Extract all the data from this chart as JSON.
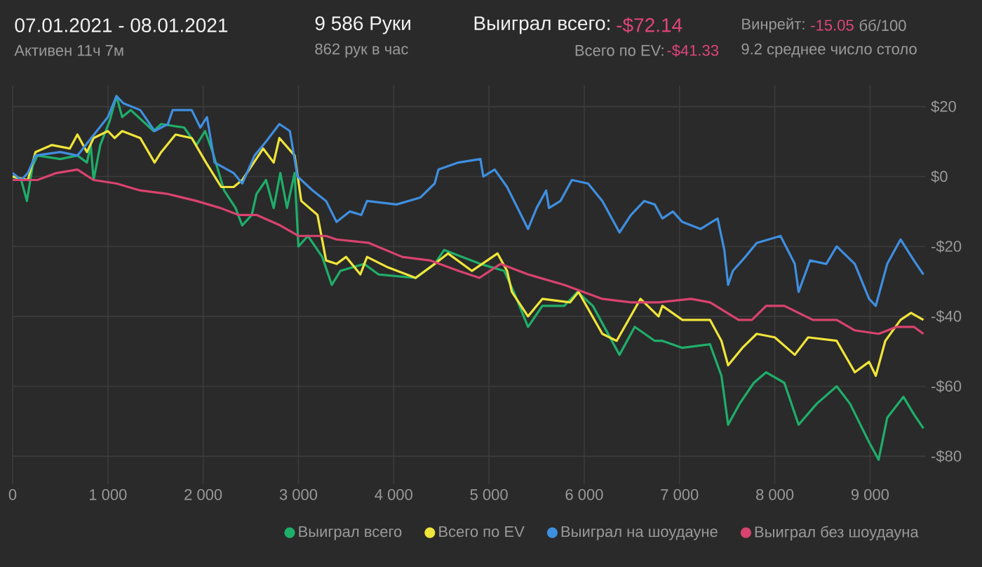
{
  "chart_data": {
    "type": "line",
    "title": "07.01.2021 - 08.01.2021",
    "subtitle": "Активен 11ч 7м",
    "annotations": [
      "9 586 Руки",
      "862 рук в час",
      "Выиграл всего:",
      "-$72.14",
      "Всего по EV:",
      "-$41.33",
      "Винрейт:",
      "-15.05",
      "бб/100",
      "9.2 среднее число столо"
    ],
    "xlim": [
      0,
      9586
    ],
    "ylim": [
      -88,
      26
    ],
    "xticks": [
      {
        "value": 0,
        "label": "0"
      },
      {
        "value": 1000,
        "label": "1 000"
      },
      {
        "value": 2000,
        "label": "2 000"
      },
      {
        "value": 3000,
        "label": "3 000"
      },
      {
        "value": 4000,
        "label": "4 000"
      },
      {
        "value": 5000,
        "label": "5 000"
      },
      {
        "value": 6000,
        "label": "6 000"
      },
      {
        "value": 7000,
        "label": "7 000"
      },
      {
        "value": 8000,
        "label": "8 000"
      },
      {
        "value": 9000,
        "label": "9 000"
      }
    ],
    "yticks": [
      {
        "value": 20,
        "label": "$20"
      },
      {
        "value": 0,
        "label": "$0"
      },
      {
        "value": -20,
        "label": "-$20"
      },
      {
        "value": -40,
        "label": "-$40"
      },
      {
        "value": -60,
        "label": "-$60"
      },
      {
        "value": -80,
        "label": "-$80"
      }
    ],
    "grid": true,
    "legend": "bottom",
    "series": [
      {
        "name": "Выиграл всего",
        "color": "#1fae6a",
        "x": [
          0,
          90,
          150,
          210,
          260,
          500,
          680,
          780,
          820,
          850,
          920,
          1020,
          1090,
          1150,
          1240,
          1480,
          1560,
          1800,
          1930,
          2020,
          2100,
          2220,
          2340,
          2410,
          2510,
          2560,
          2660,
          2740,
          2810,
          2880,
          2960,
          3000,
          3100,
          3250,
          3350,
          3440,
          3690,
          3840,
          4230,
          4430,
          4530,
          4720,
          4910,
          5160,
          5260,
          5410,
          5560,
          5790,
          5930,
          6090,
          6370,
          6530,
          6740,
          6820,
          7030,
          7320,
          7440,
          7510,
          7630,
          7780,
          7910,
          8100,
          8250,
          8440,
          8650,
          8790,
          8990,
          9090,
          9180,
          9350,
          9460,
          9560
        ],
        "values": [
          0,
          -1,
          -7,
          3,
          6,
          5,
          6,
          4,
          9,
          -1,
          9,
          16,
          23,
          17,
          19,
          13,
          15,
          14,
          9,
          13,
          7,
          -4,
          -9,
          -14,
          -11,
          -5,
          -1,
          -9,
          1,
          -9,
          1,
          -20,
          -17,
          -23,
          -31,
          -27,
          -25,
          -28,
          -29,
          -25,
          -21,
          -23,
          -25,
          -27,
          -33,
          -43,
          -37,
          -37,
          -33,
          -37,
          -51,
          -43,
          -47,
          -47,
          -49,
          -48,
          -57,
          -71,
          -65,
          -59,
          -56,
          -59,
          -71,
          -65,
          -60,
          -65,
          -76,
          -81,
          -69,
          -63,
          -68,
          -72
        ]
      },
      {
        "name": "Всего по EV",
        "color": "#f0e53a",
        "x": [
          0,
          160,
          240,
          410,
          600,
          680,
          780,
          850,
          1000,
          1070,
          1150,
          1340,
          1490,
          1560,
          1710,
          1880,
          2030,
          2190,
          2320,
          2410,
          2630,
          2740,
          2800,
          2960,
          3030,
          3200,
          3290,
          3400,
          3500,
          3650,
          3720,
          3940,
          4230,
          4430,
          4570,
          4820,
          5090,
          5190,
          5240,
          5410,
          5560,
          5850,
          5940,
          6190,
          6340,
          6590,
          6780,
          6820,
          7030,
          7320,
          7440,
          7510,
          7660,
          7810,
          8000,
          8210,
          8350,
          8650,
          8840,
          8990,
          9060,
          9160,
          9320,
          9430,
          9560
        ],
        "values": [
          0,
          -1,
          7,
          9,
          8,
          12,
          7,
          11,
          13,
          11,
          13,
          11,
          4,
          7,
          12,
          11,
          4,
          -3,
          -3,
          -1,
          8,
          4,
          11,
          6,
          -7,
          -11,
          -24,
          -25,
          -23,
          -28,
          -23,
          -26,
          -29,
          -25,
          -22,
          -27,
          -22,
          -27,
          -33,
          -40,
          -35,
          -36,
          -33,
          -45,
          -47,
          -35,
          -40,
          -37,
          -41,
          -41,
          -47,
          -54,
          -49,
          -45,
          -46,
          -51,
          -46,
          -47,
          -56,
          -53,
          -57,
          -47,
          -41,
          -39,
          -41
        ]
      },
      {
        "name": "Выиграл на шоудауне",
        "color": "#3f8fe0",
        "x": [
          0,
          90,
          160,
          240,
          500,
          680,
          1000,
          1090,
          1160,
          1340,
          1490,
          1630,
          1680,
          1880,
          1970,
          2040,
          2120,
          2320,
          2410,
          2540,
          2660,
          2800,
          2910,
          2990,
          3150,
          3290,
          3400,
          3540,
          3660,
          3720,
          4030,
          4280,
          4430,
          4470,
          4680,
          4910,
          4940,
          5060,
          5190,
          5410,
          5500,
          5600,
          5630,
          5750,
          5870,
          6040,
          6190,
          6370,
          6490,
          6630,
          6740,
          6820,
          6930,
          7030,
          7220,
          7400,
          7470,
          7510,
          7560,
          7690,
          7810,
          8060,
          8210,
          8250,
          8370,
          8540,
          8650,
          8840,
          8990,
          9060,
          9180,
          9320,
          9460,
          9560
        ],
        "values": [
          1,
          -1,
          1,
          6,
          7,
          6,
          17,
          23,
          21,
          19,
          13,
          15,
          19,
          19,
          14,
          17,
          4,
          1,
          -2,
          6,
          10,
          15,
          13,
          0,
          -4,
          -7,
          -13,
          -10,
          -11,
          -7,
          -8,
          -6,
          -2,
          2,
          4,
          5,
          0,
          2,
          -3,
          -15,
          -9,
          -4,
          -9,
          -7,
          -1,
          -2,
          -7,
          -16,
          -11,
          -7,
          -8,
          -12,
          -10,
          -13,
          -15,
          -12,
          -21,
          -31,
          -27,
          -23,
          -19,
          -17,
          -25,
          -33,
          -24,
          -25,
          -20,
          -25,
          -35,
          -37,
          -25,
          -18,
          -24,
          -28
        ]
      },
      {
        "name": "Выиграл без шоудауна",
        "color": "#d9436f",
        "x": [
          0,
          260,
          460,
          680,
          850,
          1090,
          1340,
          1630,
          1930,
          2180,
          2370,
          2560,
          2810,
          3000,
          3290,
          3400,
          3740,
          4090,
          4380,
          4680,
          4900,
          5120,
          5410,
          5790,
          6190,
          6490,
          6780,
          7120,
          7320,
          7620,
          7760,
          7910,
          8100,
          8400,
          8650,
          8840,
          9090,
          9280,
          9460,
          9560
        ],
        "values": [
          -1,
          -1,
          1,
          2,
          -1,
          -2,
          -4,
          -5,
          -7,
          -9,
          -11,
          -11,
          -14,
          -17,
          -17,
          -18,
          -19,
          -23,
          -24,
          -27,
          -29,
          -25,
          -28,
          -31,
          -35,
          -36,
          -36,
          -35,
          -36,
          -41,
          -41,
          -37,
          -37,
          -41,
          -41,
          -44,
          -45,
          -43,
          -43,
          -45
        ]
      }
    ]
  }
}
